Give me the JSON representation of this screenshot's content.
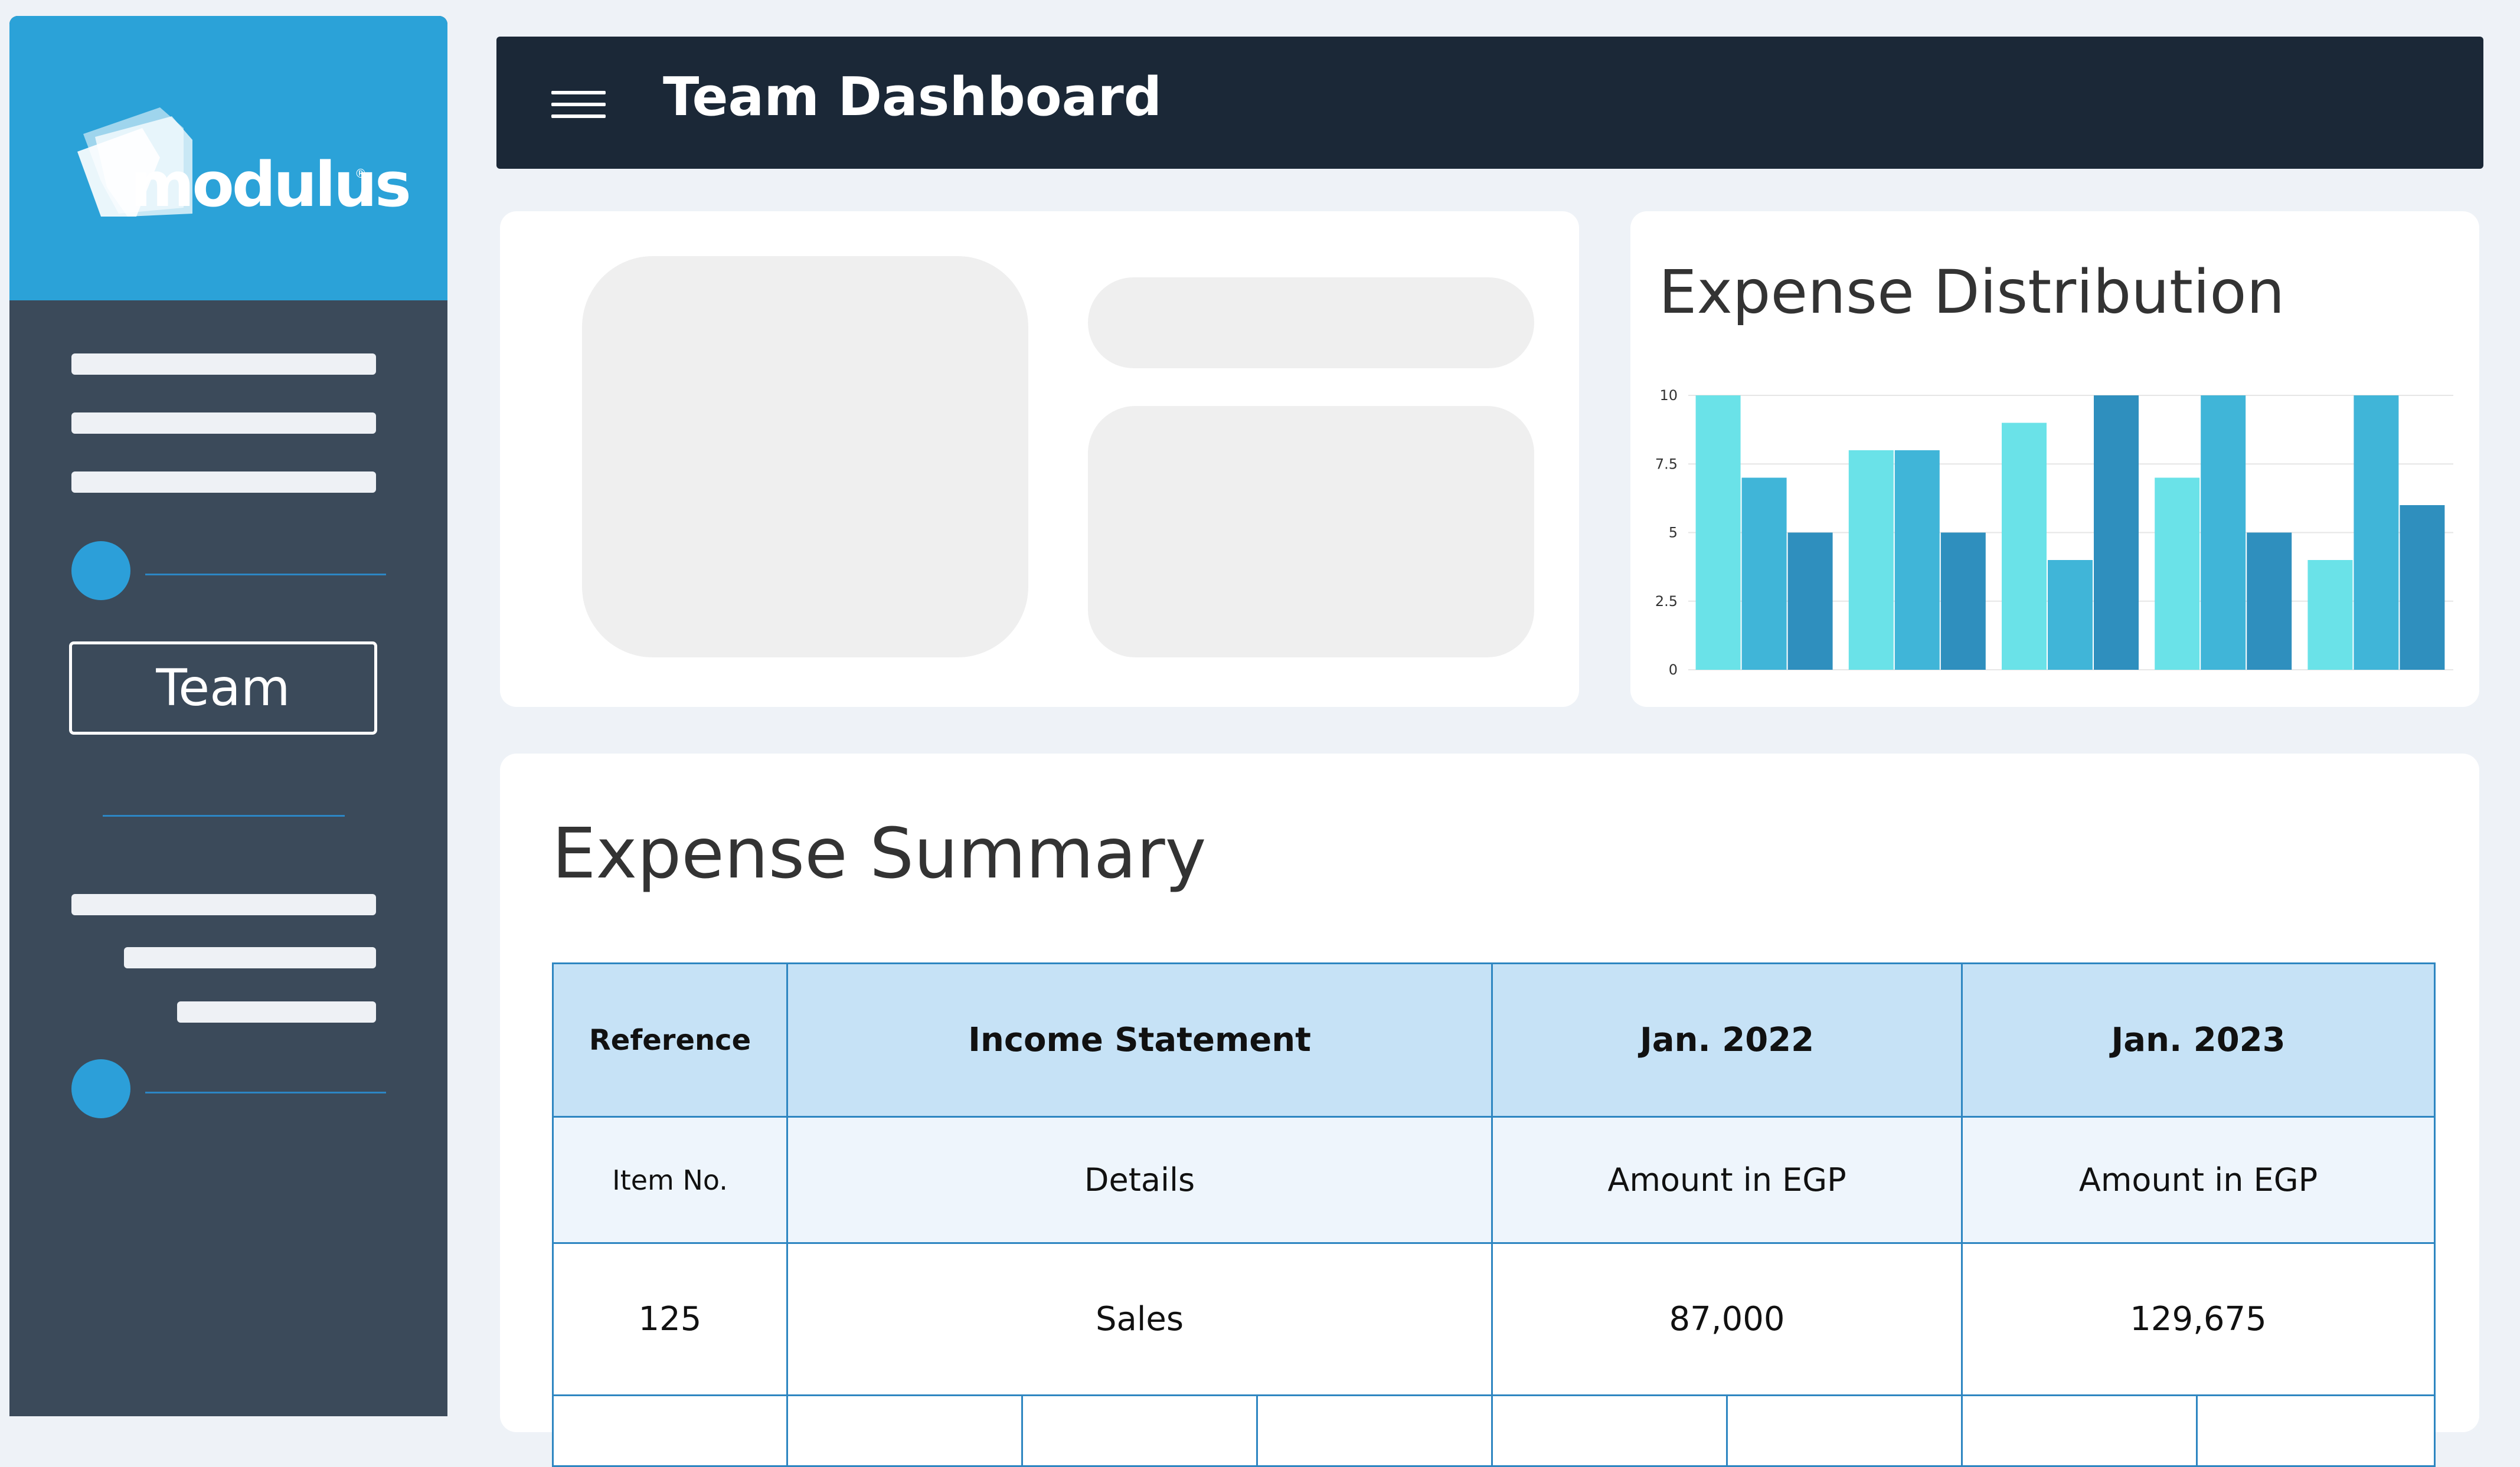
{
  "sidebar": {
    "logo_text": "modulus",
    "logo_reg": "®",
    "team_button_label": "Team",
    "brand_color": "#2ba2d8"
  },
  "header": {
    "title": "Team Dashboard",
    "menu_icon": "hamburger-menu-icon"
  },
  "expense_distribution": {
    "title": "Expense Distribution"
  },
  "chart_data": {
    "type": "bar",
    "title": "Expense Distribution",
    "categories": [
      "",
      "",
      "",
      "",
      ""
    ],
    "series": [
      {
        "values": [
          10,
          8,
          9,
          7,
          4
        ],
        "color": "#6ae2e8"
      },
      {
        "values": [
          7,
          8,
          4,
          10,
          10
        ],
        "color": "#40b5d8"
      },
      {
        "values": [
          5,
          5,
          10,
          5,
          6
        ],
        "color": "#2f8fbe"
      }
    ],
    "ylim": [
      0,
      10
    ],
    "yticks": [
      "0",
      "2.5",
      "5",
      "7.5",
      "10"
    ],
    "grid": true,
    "xlabel": "",
    "ylabel": ""
  },
  "expense_summary": {
    "title": "Expense Summary",
    "headers": [
      "Reference",
      "Income Statement",
      "Jan. 2022",
      "Jan. 2023"
    ],
    "subheaders": [
      "Item No.",
      "Details",
      "Amount in EGP",
      "Amount in EGP"
    ],
    "rows": [
      [
        "125",
        "Sales",
        "87,000",
        "129,675"
      ]
    ]
  }
}
